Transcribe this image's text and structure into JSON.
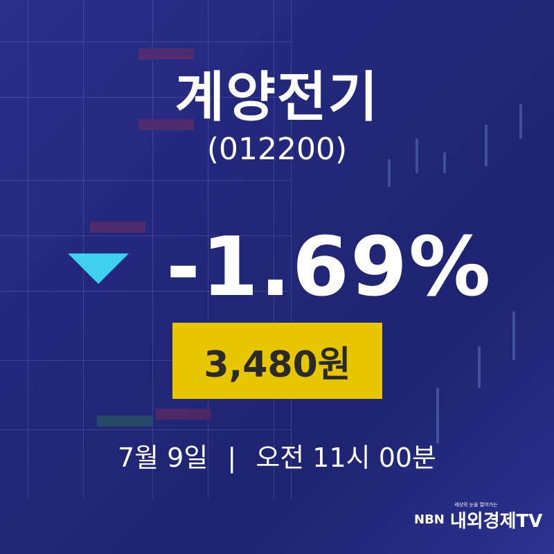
{
  "stock": {
    "name": "계양전기",
    "code": "(012200)",
    "change_percent": "-1.69%",
    "direction": "down",
    "price": "3,480원"
  },
  "timestamp": {
    "date": "7월 9일",
    "separator": "|",
    "time": "오전 11시 00분"
  },
  "logo": {
    "prefix": "NBN",
    "tagline": "세상의 눈을 열어가는",
    "name": "내외경제TV"
  },
  "colors": {
    "down_arrow": "#3fd0f0",
    "price_box": "#e7c600",
    "background": "#23277a"
  }
}
